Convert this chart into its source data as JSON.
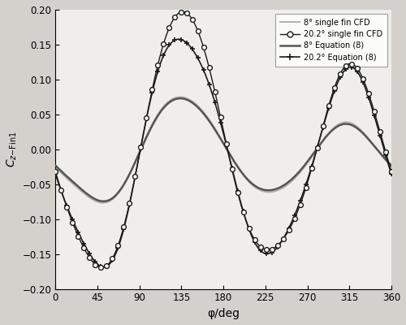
{
  "xlabel": "φ/deg",
  "ylabel": "C_{z-Fin1}",
  "xlim": [
    0,
    360
  ],
  "ylim": [
    -0.2,
    0.2
  ],
  "xticks": [
    0,
    45,
    90,
    135,
    180,
    225,
    270,
    315,
    360
  ],
  "yticks": [
    -0.2,
    -0.15,
    -0.1,
    -0.05,
    0,
    0.05,
    0.1,
    0.15,
    0.2
  ],
  "legend_entries": [
    "8° single fin CFD",
    "20.2° single fin CFD",
    "8° Equation (8)",
    "20.2° Equation (8)"
  ],
  "fig_bg": "#d4d0cb",
  "axes_bg": "#f0eeeb",
  "color_8cfd": "#b0b0b0",
  "color_202cfd": "#1a1a1a",
  "color_8eq": "#555555",
  "color_202eq": "#1a1a1a",
  "lw_8cfd": 1.4,
  "lw_202cfd": 1.0,
  "lw_8eq": 1.8,
  "lw_202eq": 1.2,
  "phi_pts_202cfd": [
    0,
    30,
    45,
    60,
    90,
    120,
    135,
    150,
    180,
    210,
    225,
    240,
    270,
    300,
    315,
    330,
    360
  ],
  "y_202cfd": [
    -0.035,
    -0.12,
    -0.17,
    -0.175,
    0.01,
    0.15,
    0.197,
    0.195,
    0.01,
    -0.105,
    -0.14,
    -0.155,
    -0.03,
    0.075,
    0.12,
    0.12,
    -0.048
  ],
  "phi_pts_8cfd": [
    0,
    30,
    45,
    60,
    90,
    120,
    135,
    150,
    180,
    210,
    225,
    240,
    270,
    300,
    315,
    330,
    360
  ],
  "y_8cfd": [
    -0.03,
    -0.055,
    -0.075,
    -0.08,
    0.003,
    0.06,
    0.075,
    0.072,
    0.003,
    -0.045,
    -0.058,
    -0.066,
    -0.013,
    0.028,
    0.034,
    0.034,
    -0.028
  ],
  "phi_pts_202eq": [
    0,
    30,
    45,
    60,
    90,
    120,
    135,
    150,
    180,
    210,
    225,
    240,
    270,
    300,
    315,
    330,
    360
  ],
  "y_202eq": [
    -0.038,
    -0.115,
    -0.168,
    -0.175,
    0.008,
    0.13,
    0.157,
    0.152,
    0.008,
    -0.11,
    -0.145,
    -0.155,
    -0.028,
    0.073,
    0.114,
    0.114,
    -0.05
  ],
  "phi_pts_8eq": [
    0,
    30,
    45,
    60,
    90,
    120,
    135,
    150,
    180,
    210,
    225,
    240,
    270,
    300,
    315,
    330,
    360
  ],
  "y_8eq": [
    -0.028,
    -0.052,
    -0.073,
    -0.078,
    0.002,
    0.058,
    0.073,
    0.07,
    0.002,
    -0.043,
    -0.056,
    -0.063,
    -0.011,
    0.026,
    0.032,
    0.032,
    -0.026
  ],
  "n_circles": 60,
  "n_plusmarks": 60,
  "circle_size": 4.2,
  "plus_size": 5.0
}
